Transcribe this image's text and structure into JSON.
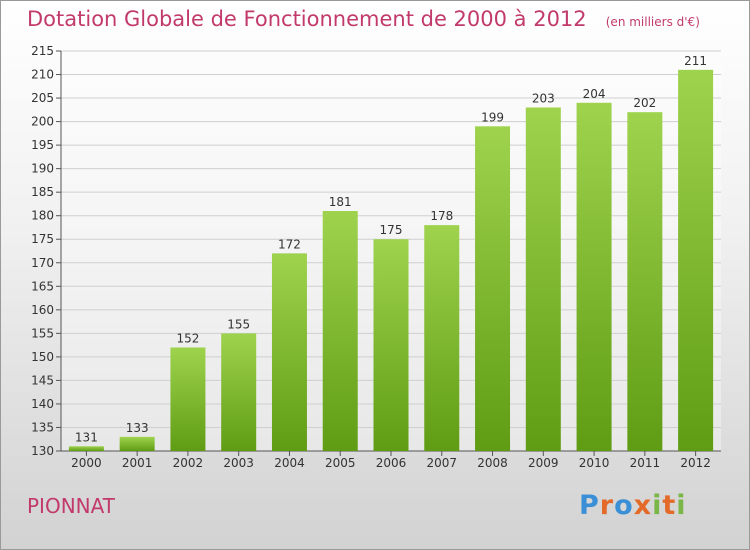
{
  "title": "Dotation Globale de Fonctionnement de 2000 à 2012",
  "subtitle": "(en milliers d'€)",
  "place": "PIONNAT",
  "logo": {
    "letters": [
      "P",
      "r",
      "o",
      "x",
      "i",
      "t",
      "i"
    ],
    "colors": [
      "#3a8fd6",
      "#e46a2a",
      "#3a8fd6",
      "#e46a2a",
      "#7ab648",
      "#e46a2a",
      "#7ab648"
    ]
  },
  "colors": {
    "bar_top": "#9fd34e",
    "bar_bottom": "#5f9c14",
    "title": "#c23a6b"
  },
  "chart_data": {
    "type": "bar",
    "categories": [
      "2000",
      "2001",
      "2002",
      "2003",
      "2004",
      "2005",
      "2006",
      "2007",
      "2008",
      "2009",
      "2010",
      "2011",
      "2012"
    ],
    "values": [
      131,
      133,
      152,
      155,
      172,
      181,
      175,
      178,
      199,
      203,
      204,
      202,
      211
    ],
    "ylim": [
      130,
      215
    ],
    "yticks": [
      130,
      135,
      140,
      145,
      150,
      155,
      160,
      165,
      170,
      175,
      180,
      185,
      190,
      195,
      200,
      205,
      210,
      215
    ],
    "grid": true,
    "xlabel": "",
    "ylabel": ""
  }
}
